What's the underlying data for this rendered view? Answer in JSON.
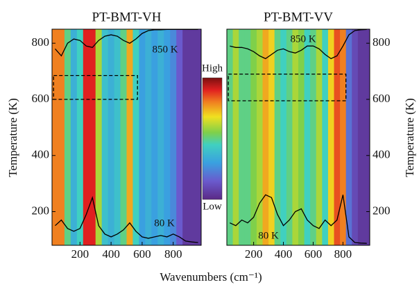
{
  "chart_data": [
    {
      "type": "heatmap",
      "title": "PT-BMT-VH",
      "xlabel": "Wavenumbers (cm⁻¹)",
      "ylabel": "Temperature (K)",
      "colorbar_labels": [
        "High",
        "Low"
      ],
      "xlim": [
        20,
        980
      ],
      "ylim": [
        80,
        850
      ],
      "xticks": [
        200,
        400,
        600,
        800
      ],
      "yticks": [
        200,
        400,
        600,
        800
      ],
      "x": [
        40,
        80,
        120,
        160,
        200,
        240,
        280,
        320,
        360,
        400,
        440,
        480,
        520,
        560,
        600,
        640,
        680,
        720,
        760,
        800,
        840,
        880,
        920,
        960
      ],
      "values": [
        0.8,
        0.8,
        0.5,
        0.35,
        0.45,
        0.9,
        0.9,
        0.6,
        0.4,
        0.35,
        0.4,
        0.5,
        0.75,
        0.45,
        0.3,
        0.35,
        0.3,
        0.35,
        0.3,
        0.25,
        0.15,
        0.05,
        0.05,
        0.05
      ],
      "series": [
        {
          "color": "#000000",
          "values": [
            150,
            170,
            140,
            130,
            140,
            190,
            250,
            150,
            120,
            110,
            120,
            135,
            160,
            130,
            110,
            105,
            110,
            115,
            110,
            120,
            110,
            95,
            92,
            90
          ]
        },
        {
          "color": "#000000",
          "values": [
            780,
            755,
            800,
            815,
            810,
            790,
            785,
            810,
            825,
            830,
            825,
            810,
            800,
            815,
            835,
            845,
            848,
            848,
            849,
            849,
            849,
            849,
            849,
            849
          ]
        }
      ],
      "box": {
        "xlim": [
          30,
          570
        ],
        "ylim": [
          600,
          685
        ]
      },
      "annotations": [
        "850 K",
        "80 K"
      ]
    },
    {
      "type": "heatmap",
      "title": "PT-BMT-VV",
      "ylabel": "Temperature (K)",
      "xlim": [
        20,
        980
      ],
      "ylim": [
        80,
        850
      ],
      "xticks": [
        200,
        400,
        600,
        800
      ],
      "yticks": [
        200,
        400,
        600,
        800
      ],
      "x": [
        40,
        80,
        120,
        160,
        200,
        240,
        280,
        320,
        360,
        400,
        440,
        480,
        520,
        560,
        600,
        640,
        680,
        720,
        760,
        800,
        840,
        880,
        920,
        960
      ],
      "values": [
        0.5,
        0.6,
        0.5,
        0.5,
        0.55,
        0.6,
        0.75,
        0.7,
        0.5,
        0.45,
        0.5,
        0.6,
        0.55,
        0.45,
        0.5,
        0.6,
        0.45,
        0.7,
        0.85,
        0.8,
        0.2,
        0.1,
        0.05,
        0.05
      ],
      "series": [
        {
          "color": "#000000",
          "values": [
            160,
            150,
            170,
            160,
            180,
            230,
            260,
            250,
            190,
            150,
            170,
            200,
            210,
            170,
            150,
            140,
            170,
            150,
            170,
            260,
            110,
            90,
            88,
            87
          ]
        },
        {
          "color": "#000000",
          "values": [
            790,
            785,
            785,
            780,
            770,
            755,
            745,
            760,
            775,
            780,
            770,
            765,
            775,
            790,
            790,
            780,
            760,
            745,
            755,
            790,
            830,
            845,
            848,
            849
          ]
        }
      ],
      "box": {
        "xlim": [
          30,
          820
        ],
        "ylim": [
          595,
          690
        ]
      },
      "annotations": [
        "850 K",
        "80 K"
      ]
    }
  ]
}
